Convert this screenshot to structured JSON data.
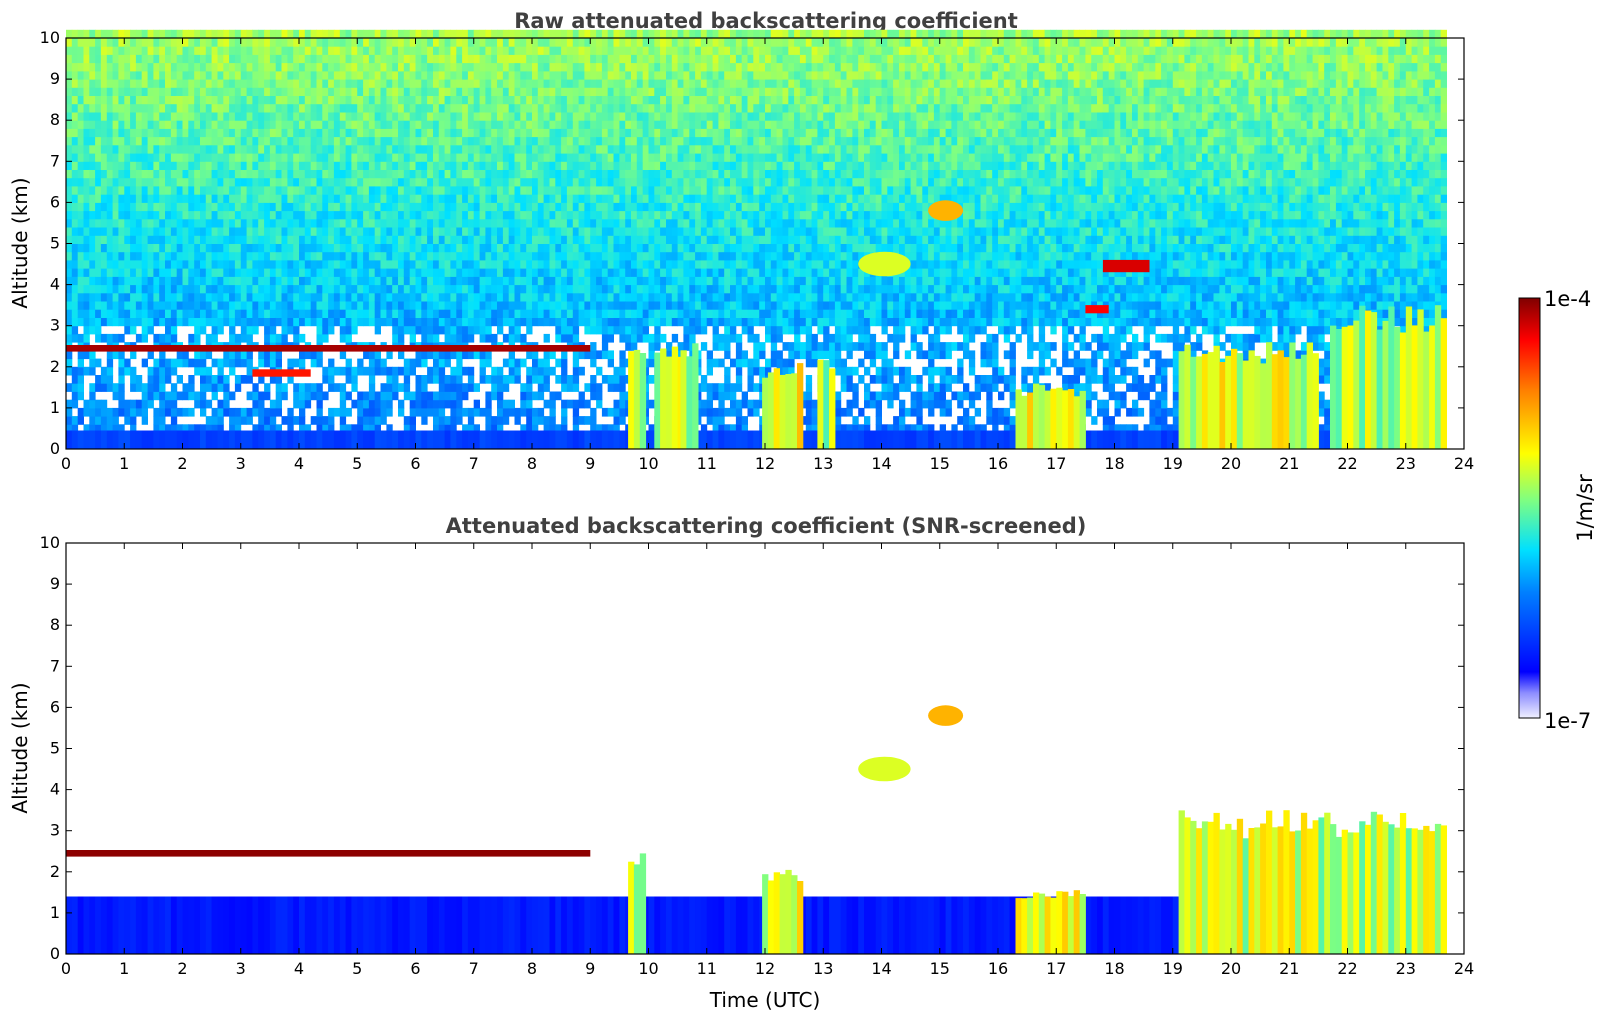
{
  "chart_data": [
    {
      "type": "heatmap",
      "title": "Raw attenuated backscattering coefficient",
      "xlabel": "",
      "ylabel": "Altitude (km)",
      "xlim": [
        0,
        24
      ],
      "ylim": [
        0,
        10
      ],
      "x_ticks": [
        "0",
        "1",
        "2",
        "3",
        "4",
        "5",
        "6",
        "7",
        "8",
        "9",
        "10",
        "11",
        "12",
        "13",
        "14",
        "15",
        "16",
        "17",
        "18",
        "19",
        "20",
        "21",
        "22",
        "23",
        "24"
      ],
      "y_ticks": [
        "0",
        "1",
        "2",
        "3",
        "4",
        "5",
        "6",
        "7",
        "8",
        "9",
        "10"
      ],
      "data_end_hour": 23.7,
      "features": [
        {
          "kind": "noise_background",
          "level_low": 0.28,
          "level_high": 0.55
        },
        {
          "kind": "cloud_layer",
          "x0": 0,
          "x1": 9.0,
          "alt": 2.45,
          "thick": 0.16,
          "level": 0.97
        },
        {
          "kind": "cloud_layer",
          "x0": 3.2,
          "x1": 4.2,
          "alt": 1.85,
          "thick": 0.18,
          "level": 0.88
        },
        {
          "kind": "cloud_layer",
          "x0": 17.8,
          "x1": 18.6,
          "alt": 4.45,
          "thick": 0.3,
          "level": 0.93
        },
        {
          "kind": "cloud_layer",
          "x0": 17.5,
          "x1": 17.9,
          "alt": 3.4,
          "thick": 0.2,
          "level": 0.9
        },
        {
          "kind": "boundary_layer",
          "x0": 0,
          "x1": 23.7,
          "top": 0.45,
          "level": 0.18
        },
        {
          "kind": "convective_column",
          "x0": 9.65,
          "x1": 9.9,
          "top": 2.5,
          "level": 0.6
        },
        {
          "kind": "convective_column",
          "x0": 10.1,
          "x1": 10.5,
          "top": 2.6,
          "level": 0.58
        },
        {
          "kind": "convective_column",
          "x0": 10.55,
          "x1": 10.8,
          "top": 2.8,
          "level": 0.58
        },
        {
          "kind": "convective_column",
          "x0": 11.95,
          "x1": 12.55,
          "top": 2.1,
          "level": 0.62
        },
        {
          "kind": "convective_column",
          "x0": 12.9,
          "x1": 13.15,
          "top": 2.2,
          "level": 0.55
        },
        {
          "kind": "convective_column",
          "x0": 16.3,
          "x1": 17.5,
          "top": 1.6,
          "level": 0.62
        },
        {
          "kind": "convective_column",
          "x0": 19.1,
          "x1": 21.5,
          "top": 2.6,
          "level": 0.6
        },
        {
          "kind": "convective_column",
          "x0": 21.7,
          "x1": 23.7,
          "top": 3.5,
          "level": 0.55
        },
        {
          "kind": "aerosol_patch",
          "x0": 13.6,
          "x1": 14.5,
          "alt": 4.5,
          "thick": 0.6,
          "level": 0.6
        },
        {
          "kind": "aerosol_patch",
          "x0": 14.8,
          "x1": 15.4,
          "alt": 5.8,
          "thick": 0.5,
          "level": 0.72
        }
      ]
    },
    {
      "type": "heatmap",
      "title": "Attenuated backscattering coefficient (SNR-screened)",
      "xlabel": "Time (UTC)",
      "ylabel": "Altitude (km)",
      "xlim": [
        0,
        24
      ],
      "ylim": [
        0,
        10
      ],
      "x_ticks": [
        "0",
        "1",
        "2",
        "3",
        "4",
        "5",
        "6",
        "7",
        "8",
        "9",
        "10",
        "11",
        "12",
        "13",
        "14",
        "15",
        "16",
        "17",
        "18",
        "19",
        "20",
        "21",
        "22",
        "23",
        "24"
      ],
      "y_ticks": [
        "0",
        "1",
        "2",
        "3",
        "4",
        "5",
        "6",
        "7",
        "8",
        "9",
        "10"
      ],
      "data_end_hour": 23.7,
      "screened": true,
      "features": [
        {
          "kind": "cloud_layer",
          "x0": 0,
          "x1": 9.0,
          "alt": 2.45,
          "thick": 0.16,
          "level": 0.99
        },
        {
          "kind": "boundary_layer",
          "x0": 0,
          "x1": 23.7,
          "top": 1.4,
          "level": 0.12
        },
        {
          "kind": "convective_column",
          "x0": 9.65,
          "x1": 9.9,
          "top": 2.5,
          "level": 0.6
        },
        {
          "kind": "convective_column",
          "x0": 11.95,
          "x1": 12.55,
          "top": 2.1,
          "level": 0.62
        },
        {
          "kind": "convective_column",
          "x0": 16.3,
          "x1": 17.5,
          "top": 1.6,
          "level": 0.62
        },
        {
          "kind": "convective_column",
          "x0": 19.1,
          "x1": 23.7,
          "top": 3.5,
          "level": 0.58
        },
        {
          "kind": "aerosol_patch",
          "x0": 13.6,
          "x1": 14.5,
          "alt": 4.5,
          "thick": 0.6,
          "level": 0.6
        },
        {
          "kind": "aerosol_patch",
          "x0": 14.8,
          "x1": 15.4,
          "alt": 5.8,
          "thick": 0.5,
          "level": 0.72
        }
      ]
    }
  ],
  "colorbar": {
    "max_label": "1e-4",
    "min_label": "1e-7",
    "unit_label": "1/m/sr",
    "colormap": "jet"
  }
}
